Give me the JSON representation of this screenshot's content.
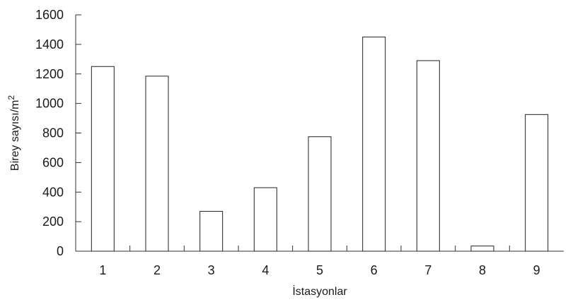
{
  "chart_data": {
    "type": "bar",
    "categories": [
      "1",
      "2",
      "3",
      "4",
      "5",
      "6",
      "7",
      "8",
      "9"
    ],
    "values": [
      1250,
      1185,
      270,
      430,
      775,
      1450,
      1290,
      35,
      925
    ],
    "xlabel": "İstasyonlar",
    "ylabel": {
      "main": "Birey sayısı/m",
      "superscript": "2"
    },
    "ylim": [
      0,
      1600
    ],
    "yticks": [
      0,
      200,
      400,
      600,
      800,
      1000,
      1200,
      1400,
      1600
    ],
    "grid": false,
    "legend": "none",
    "bar_fill": "#ffffff",
    "bar_stroke": "#222222"
  }
}
